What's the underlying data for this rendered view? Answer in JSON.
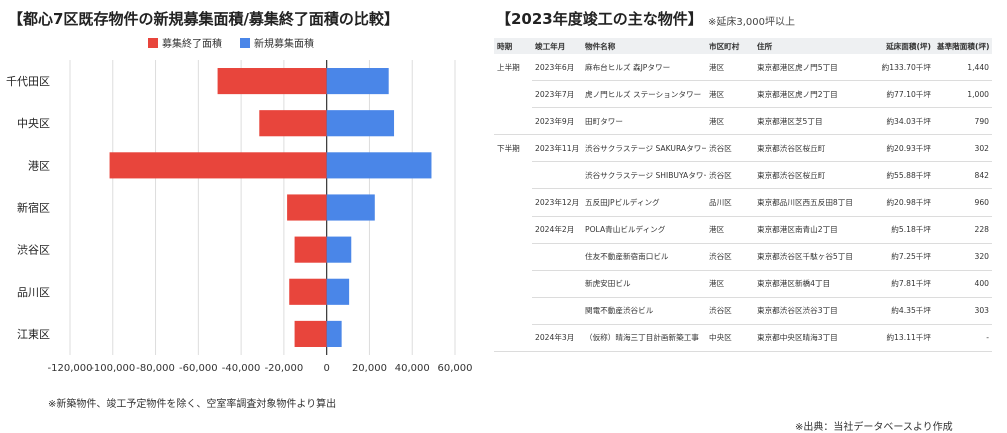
{
  "chart_title": "【都心7区既存物件の新規募集面積/募集終了面積の比較】",
  "table_title": "【2023年度竣工の主な物件】",
  "table_note": "※延床3,000坪以上",
  "chart_footnote": "※新築物件、竣工予定物件を除く、空室率調査対象物件より算出",
  "source_note": "※出典：当社データベースより作成",
  "colors": {
    "ended": "#e8453c",
    "new": "#4a86e8",
    "grid": "#dddddd",
    "axis": "#333333"
  },
  "chart_data": {
    "type": "bar",
    "orientation": "horizontal",
    "categories": [
      "千代田区",
      "中央区",
      "港区",
      "新宿区",
      "渋谷区",
      "品川区",
      "江東区"
    ],
    "series": [
      {
        "name": "募集終了面積",
        "values": [
          -51000,
          -31500,
          -101500,
          -18500,
          -15000,
          -17500,
          -15000
        ]
      },
      {
        "name": "新規募集面積",
        "values": [
          29000,
          31500,
          49000,
          22500,
          11500,
          10500,
          7000
        ]
      }
    ],
    "xlim": [
      -120000,
      60000
    ],
    "xticks": [
      -120000,
      -100000,
      -80000,
      -60000,
      -40000,
      -20000,
      0,
      20000,
      40000,
      60000
    ],
    "xtick_labels": [
      "-120,000",
      "-100,000",
      "-80,000",
      "-60,000",
      "-40,000",
      "-20,000",
      "0",
      "20,000",
      "40,000",
      "60,000"
    ],
    "legend_position": "top-center",
    "grid": true
  },
  "table": {
    "headers": [
      "時期",
      "竣工年月",
      "物件名称",
      "市区町村",
      "住所",
      "延床面積(坪)",
      "基準階面積(坪)"
    ],
    "rows": [
      [
        "上半期",
        "2023年6月",
        "麻布台ヒルズ 森JPタワー",
        "港区",
        "東京都港区虎ノ門5丁目",
        "約133.70千坪",
        "1,440"
      ],
      [
        "",
        "2023年7月",
        "虎ノ門ヒルズ ステーションタワー",
        "港区",
        "東京都港区虎ノ門2丁目",
        "約77.10千坪",
        "1,000"
      ],
      [
        "",
        "2023年9月",
        "田町タワー",
        "港区",
        "東京都港区芝5丁目",
        "約34.03千坪",
        "790"
      ],
      [
        "下半期",
        "2023年11月",
        "渋谷サクラステージ SAKURAタワー",
        "渋谷区",
        "東京都渋谷区桜丘町",
        "約20.93千坪",
        "302"
      ],
      [
        "",
        "",
        "渋谷サクラステージ SHIBUYAタワー",
        "渋谷区",
        "東京都渋谷区桜丘町",
        "約55.88千坪",
        "842"
      ],
      [
        "",
        "2023年12月",
        "五反田JPビルディング",
        "品川区",
        "東京都品川区西五反田8丁目",
        "約20.98千坪",
        "960"
      ],
      [
        "",
        "2024年2月",
        "POLA青山ビルディング",
        "港区",
        "東京都港区南青山2丁目",
        "約5.18千坪",
        "228"
      ],
      [
        "",
        "",
        "住友不動産新宿南口ビル",
        "渋谷区",
        "東京都渋谷区千駄ヶ谷5丁目",
        "約7.25千坪",
        "320"
      ],
      [
        "",
        "",
        "新虎安田ビル",
        "港区",
        "東京都港区新橋4丁目",
        "約7.81千坪",
        "400"
      ],
      [
        "",
        "",
        "関電不動産渋谷ビル",
        "渋谷区",
        "東京都渋谷区渋谷3丁目",
        "約4.35千坪",
        "303"
      ],
      [
        "",
        "2024年3月",
        "（仮称）晴海三丁目計画新築工事",
        "中央区",
        "東京都中央区晴海3丁目",
        "約13.11千坪",
        "-"
      ]
    ]
  }
}
